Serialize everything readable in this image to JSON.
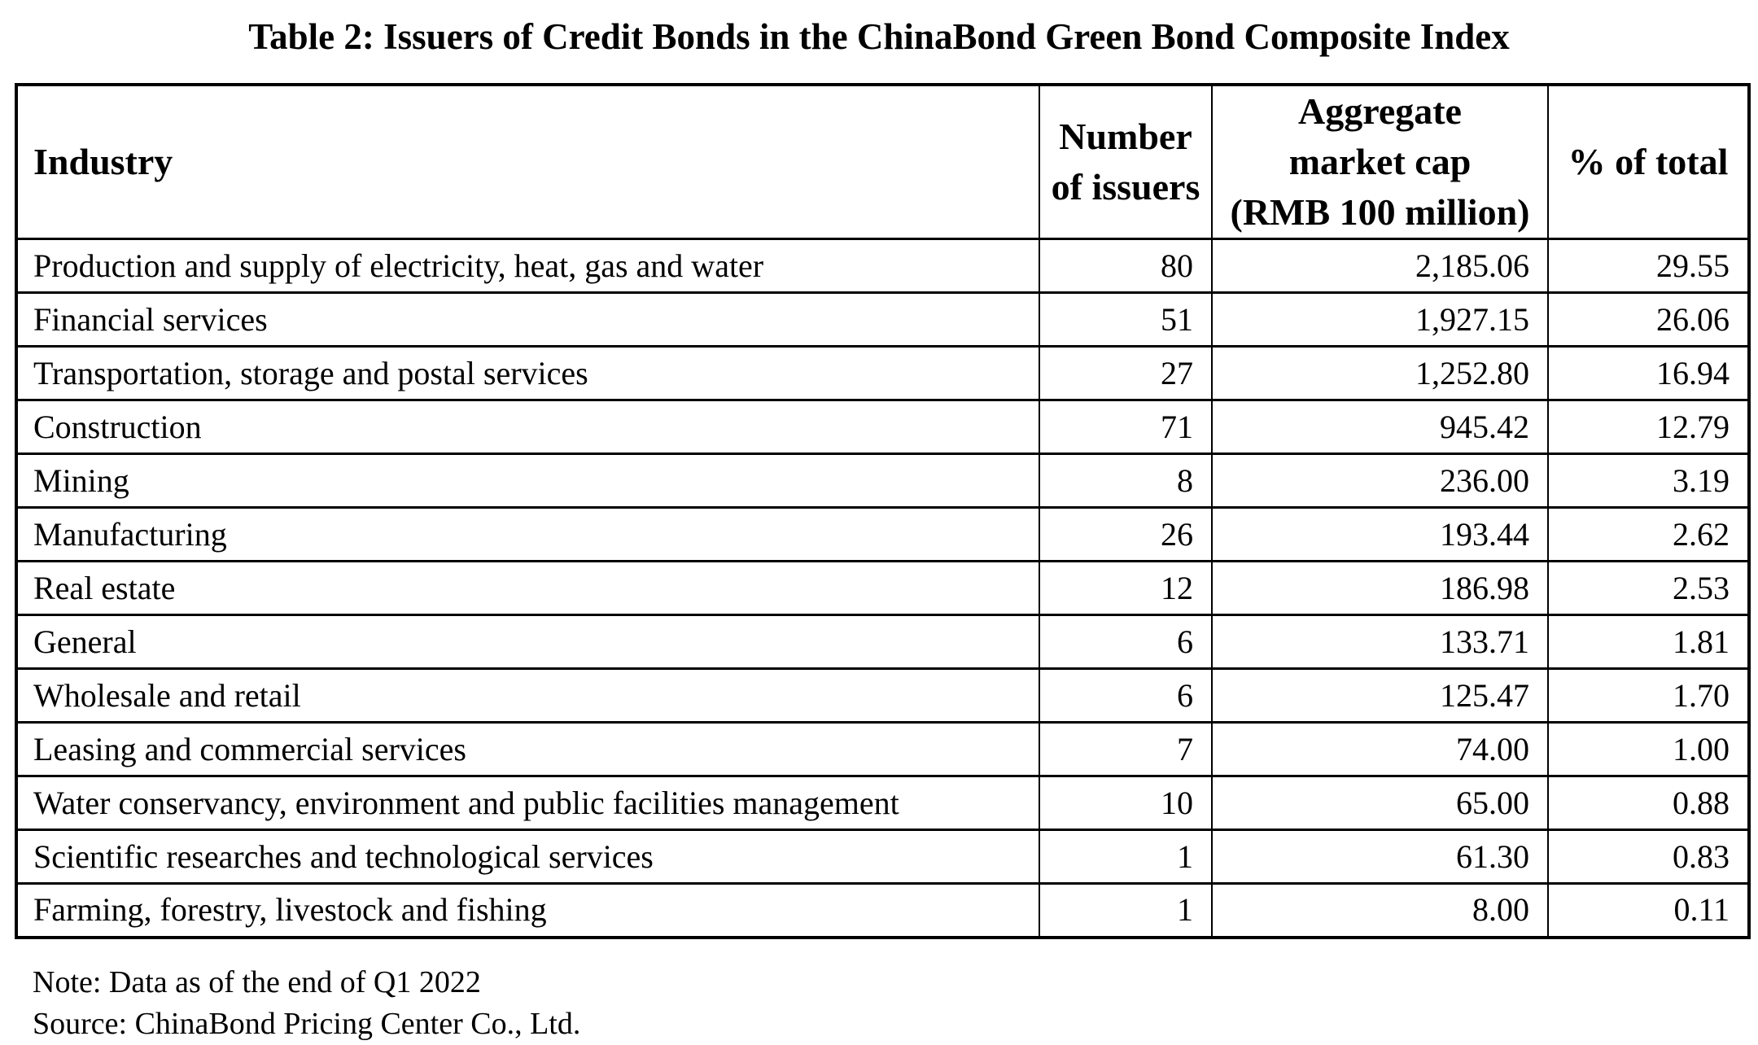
{
  "page": {
    "title": "Table 2: Issuers of Credit Bonds in the ChinaBond Green Bond Composite Index",
    "note": "Note: Data as of the end of Q1 2022",
    "source": "Source: ChinaBond Pricing Center Co., Ltd."
  },
  "table": {
    "columns": [
      {
        "id": "industry",
        "label": "Industry",
        "align": "left"
      },
      {
        "id": "issuers",
        "label": "Number\nof issuers",
        "align": "right"
      },
      {
        "id": "market_cap",
        "label": "Aggregate\nmarket cap\n(RMB 100 million)",
        "align": "right"
      },
      {
        "id": "pct",
        "label": "% of total",
        "align": "right"
      }
    ],
    "rows": [
      {
        "industry": "Production and supply of electricity, heat, gas and water",
        "issuers": "80",
        "market_cap": "2,185.06",
        "pct": "29.55"
      },
      {
        "industry": "Financial services",
        "issuers": "51",
        "market_cap": "1,927.15",
        "pct": "26.06"
      },
      {
        "industry": "Transportation, storage and postal services",
        "issuers": "27",
        "market_cap": "1,252.80",
        "pct": "16.94"
      },
      {
        "industry": "Construction",
        "issuers": "71",
        "market_cap": "945.42",
        "pct": "12.79"
      },
      {
        "industry": "Mining",
        "issuers": "8",
        "market_cap": "236.00",
        "pct": "3.19"
      },
      {
        "industry": "Manufacturing",
        "issuers": "26",
        "market_cap": "193.44",
        "pct": "2.62"
      },
      {
        "industry": "Real estate",
        "issuers": "12",
        "market_cap": "186.98",
        "pct": "2.53"
      },
      {
        "industry": "General",
        "issuers": "6",
        "market_cap": "133.71",
        "pct": "1.81"
      },
      {
        "industry": "Wholesale and retail",
        "issuers": "6",
        "market_cap": "125.47",
        "pct": "1.70"
      },
      {
        "industry": "Leasing and commercial services",
        "issuers": "7",
        "market_cap": "74.00",
        "pct": "1.00"
      },
      {
        "industry": "Water conservancy, environment and public facilities management",
        "issuers": "10",
        "market_cap": "65.00",
        "pct": "0.88"
      },
      {
        "industry": "Scientific researches and technological services",
        "issuers": "1",
        "market_cap": "61.30",
        "pct": "0.83"
      },
      {
        "industry": "Farming, forestry, livestock and fishing",
        "issuers": "1",
        "market_cap": "8.00",
        "pct": "0.11"
      }
    ]
  },
  "chart_data": {
    "type": "table",
    "title": "Table 2: Issuers of Credit Bonds in the ChinaBond Green Bond Composite Index",
    "columns": [
      "Industry",
      "Number of issuers",
      "Aggregate market cap (RMB 100 million)",
      "% of total"
    ],
    "rows": [
      [
        "Production and supply of electricity, heat, gas and water",
        80,
        2185.06,
        29.55
      ],
      [
        "Financial services",
        51,
        1927.15,
        26.06
      ],
      [
        "Transportation, storage and postal services",
        27,
        1252.8,
        16.94
      ],
      [
        "Construction",
        71,
        945.42,
        12.79
      ],
      [
        "Mining",
        8,
        236.0,
        3.19
      ],
      [
        "Manufacturing",
        26,
        193.44,
        2.62
      ],
      [
        "Real estate",
        12,
        186.98,
        2.53
      ],
      [
        "General",
        6,
        133.71,
        1.81
      ],
      [
        "Wholesale and retail",
        6,
        125.47,
        1.7
      ],
      [
        "Leasing and commercial services",
        7,
        74.0,
        1.0
      ],
      [
        "Water conservancy, environment and public facilities management",
        10,
        65.0,
        0.88
      ],
      [
        "Scientific researches and technological services",
        1,
        61.3,
        0.83
      ],
      [
        "Farming, forestry, livestock and fishing",
        1,
        8.0,
        0.11
      ]
    ]
  }
}
